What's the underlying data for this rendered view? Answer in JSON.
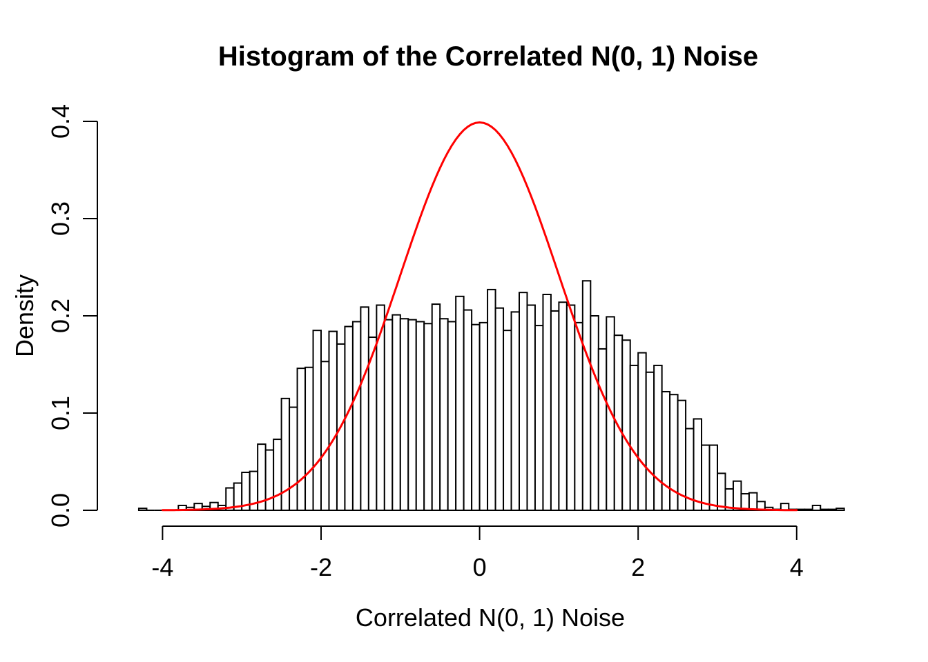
{
  "chart": {
    "title": "Histogram of the Correlated N(0, 1) Noise",
    "xlabel": "Correlated N(0, 1) Noise",
    "ylabel": "Density",
    "colors": {
      "background": "#ffffff",
      "foreground": "#000000",
      "bar_fill": "#ffffff",
      "bar_border": "#000000",
      "curve": "#ff0000"
    },
    "chart_data": {
      "type": "bar",
      "subtype": "histogram",
      "title": "Histogram of the Correlated N(0, 1) Noise",
      "xlabel": "Correlated N(0, 1) Noise",
      "ylabel": "Density",
      "grid": false,
      "legend_position": "none",
      "xlim": [
        -4.4,
        4.7
      ],
      "ylim": [
        0,
        0.4
      ],
      "x_ticks": [
        -4,
        -2,
        0,
        2,
        4
      ],
      "x_tick_labels": [
        "-4",
        "-2",
        "0",
        "2",
        "4"
      ],
      "y_ticks": [
        0.0,
        0.1,
        0.2,
        0.3,
        0.4
      ],
      "y_tick_labels": [
        "0.0",
        "0.1",
        "0.2",
        "0.3",
        "0.4"
      ],
      "bin_start": -4.3,
      "bin_width": 0.1,
      "values": [
        0.002,
        0.0,
        0.0,
        0.0,
        0.0,
        0.005,
        0.003,
        0.007,
        0.004,
        0.008,
        0.005,
        0.023,
        0.028,
        0.039,
        0.04,
        0.068,
        0.062,
        0.073,
        0.115,
        0.106,
        0.146,
        0.147,
        0.185,
        0.153,
        0.184,
        0.171,
        0.189,
        0.194,
        0.209,
        0.178,
        0.211,
        0.196,
        0.201,
        0.197,
        0.196,
        0.194,
        0.192,
        0.212,
        0.197,
        0.194,
        0.22,
        0.206,
        0.191,
        0.193,
        0.227,
        0.208,
        0.185,
        0.204,
        0.224,
        0.211,
        0.19,
        0.222,
        0.205,
        0.214,
        0.211,
        0.193,
        0.236,
        0.2,
        0.166,
        0.199,
        0.18,
        0.175,
        0.149,
        0.162,
        0.142,
        0.149,
        0.122,
        0.119,
        0.113,
        0.084,
        0.094,
        0.067,
        0.067,
        0.038,
        0.022,
        0.03,
        0.017,
        0.018,
        0.009,
        0.003,
        0.001,
        0.007,
        0.001,
        0.001,
        0.001,
        0.005,
        0.001,
        0.001,
        0.002
      ],
      "overlay_curve": {
        "name": "standard-normal-density",
        "distribution": "normal",
        "mean": 0,
        "sd": 1,
        "peak_density": 0.3989,
        "x_range": [
          -4,
          4
        ],
        "color": "#ff0000"
      }
    }
  }
}
